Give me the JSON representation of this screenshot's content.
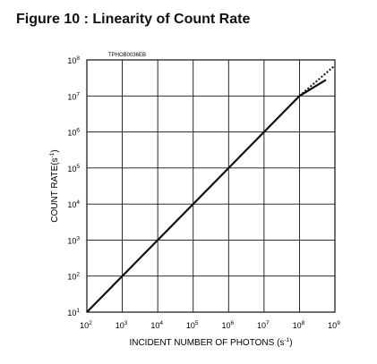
{
  "figure": {
    "title": "Figure 10 : Linearity of Count Rate"
  },
  "chart_data": {
    "type": "line",
    "chart_code": "TPHOB0036EB",
    "xlabel": {
      "main": "INCIDENT NUMBER OF PHOTONS (s",
      "sup": "-1",
      "tail": ")"
    },
    "ylabel": {
      "main": "COUNT RATE(s",
      "sup": "-1",
      "tail": ")"
    },
    "x_scale": "log",
    "y_scale": "log",
    "xlim": [
      100,
      1000000000
    ],
    "ylim": [
      10,
      100000000
    ],
    "grid": true,
    "x_ticks": [
      {
        "base": "10",
        "exp": "2"
      },
      {
        "base": "10",
        "exp": "3"
      },
      {
        "base": "10",
        "exp": "4"
      },
      {
        "base": "10",
        "exp": "5"
      },
      {
        "base": "10",
        "exp": "6"
      },
      {
        "base": "10",
        "exp": "7"
      },
      {
        "base": "10",
        "exp": "8"
      },
      {
        "base": "10",
        "exp": "9"
      }
    ],
    "y_ticks": [
      {
        "base": "10",
        "exp": "1"
      },
      {
        "base": "10",
        "exp": "2"
      },
      {
        "base": "10",
        "exp": "3"
      },
      {
        "base": "10",
        "exp": "4"
      },
      {
        "base": "10",
        "exp": "5"
      },
      {
        "base": "10",
        "exp": "6"
      },
      {
        "base": "10",
        "exp": "7"
      },
      {
        "base": "10",
        "exp": "8"
      }
    ],
    "series": [
      {
        "style": "solid",
        "x": [
          100,
          100000000,
          560000000
        ],
        "y": [
          10,
          10000000,
          28000000
        ]
      },
      {
        "style": "dotted",
        "x": [
          100000000,
          1000000000
        ],
        "y": [
          10000000,
          70000000
        ]
      }
    ]
  }
}
